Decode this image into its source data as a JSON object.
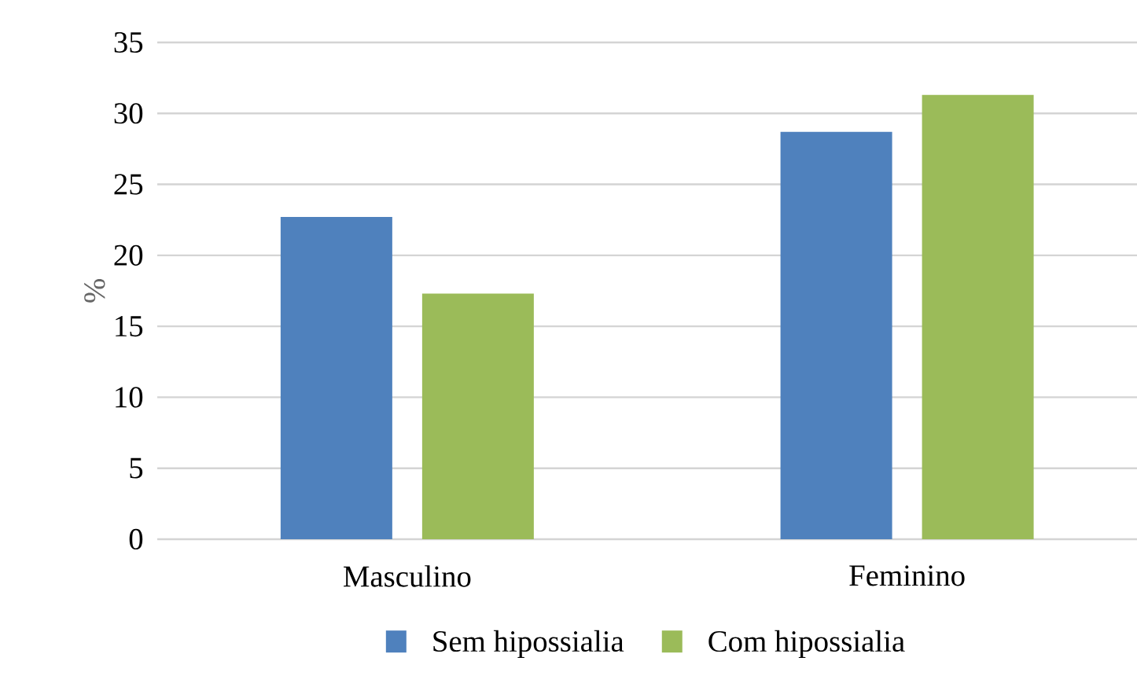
{
  "chart_data": {
    "type": "bar",
    "ylabel": "%",
    "categories": [
      "Masculino",
      "Feminino"
    ],
    "series": [
      {
        "name": "Sem hipossialia",
        "color": "#4f81bd",
        "values": [
          22.7,
          28.7
        ]
      },
      {
        "name": "Com hipossialia",
        "color": "#9bbb59",
        "values": [
          17.3,
          31.3
        ]
      }
    ],
    "ylim": [
      0,
      35
    ],
    "yticks": [
      0,
      5,
      10,
      15,
      20,
      25,
      30,
      35
    ],
    "grid": "y",
    "legend": "bottom"
  }
}
